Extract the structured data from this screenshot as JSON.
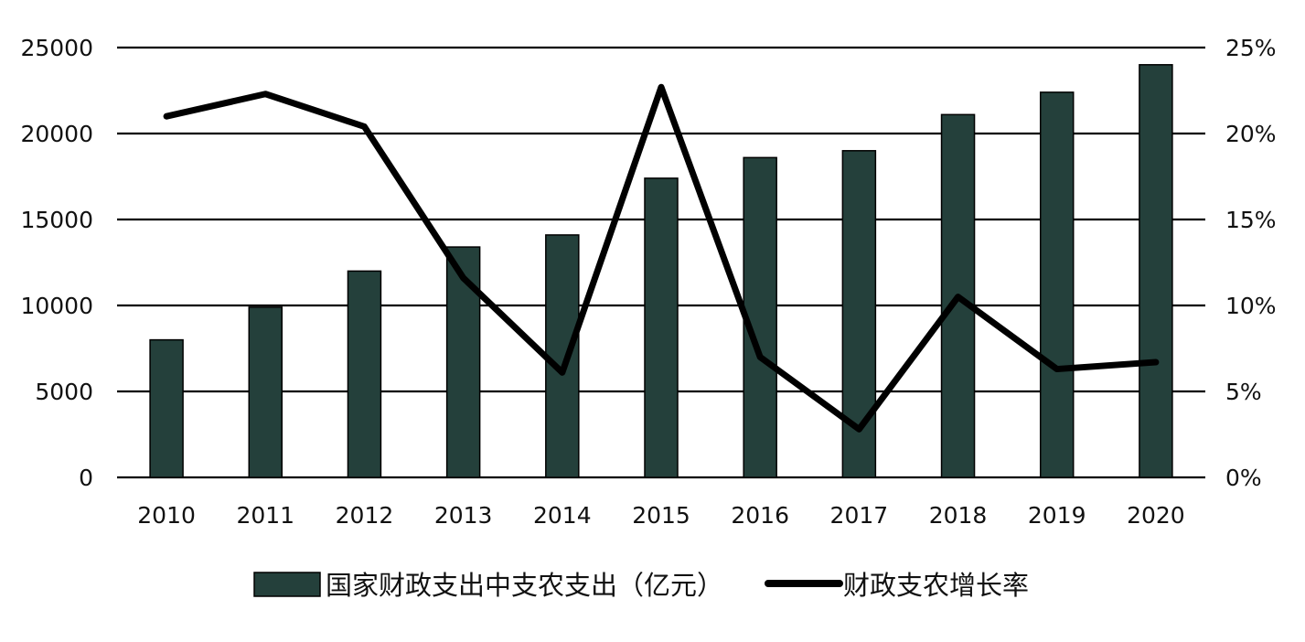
{
  "chart_data": {
    "type": "bar",
    "categories": [
      "2010",
      "2011",
      "2012",
      "2013",
      "2014",
      "2015",
      "2016",
      "2017",
      "2018",
      "2019",
      "2020"
    ],
    "series": [
      {
        "name": "国家财政支出中支农支出（亿元）",
        "type": "bar",
        "axis": "left",
        "values": [
          8000,
          9900,
          12000,
          13400,
          14100,
          17400,
          18600,
          19000,
          21100,
          22400,
          24000
        ]
      },
      {
        "name": "财政支农增长率",
        "type": "line",
        "axis": "right",
        "values": [
          21.0,
          22.3,
          20.4,
          11.6,
          6.1,
          22.7,
          7.0,
          2.8,
          10.5,
          6.3,
          6.7
        ]
      }
    ],
    "y_left": {
      "ticks": [
        "0",
        "5000",
        "10000",
        "15000",
        "20000",
        "25000"
      ],
      "min": 0,
      "max": 25000
    },
    "y_right": {
      "ticks": [
        "0%",
        "5%",
        "10%",
        "15%",
        "20%",
        "25%"
      ],
      "min": 0,
      "max": 25
    },
    "grid": true,
    "legend_position": "bottom",
    "colors": {
      "bar_fill": "#24403b",
      "bar_stroke": "#000000",
      "line": "#000000",
      "grid": "#000000"
    }
  }
}
